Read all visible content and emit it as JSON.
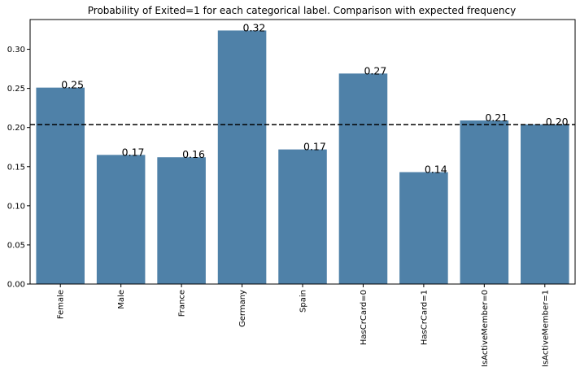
{
  "chart_data": {
    "type": "bar",
    "title": "Probability of Exited=1 for each categorical label. Comparison with expected frequency",
    "xlabel": "",
    "ylabel": "",
    "categories": [
      "Female",
      "Male",
      "France",
      "Germany",
      "Spain",
      "HasCrCard=0",
      "HasCrCard=1",
      "IsActiveMember=0",
      "IsActiveMember=1"
    ],
    "values": [
      0.251,
      0.165,
      0.162,
      0.324,
      0.172,
      0.269,
      0.143,
      0.209,
      0.204
    ],
    "data_labels": [
      "0.25",
      "0.17",
      "0.16",
      "0.32",
      "0.17",
      "0.27",
      "0.14",
      "0.21",
      "0.20"
    ],
    "ylim": [
      0,
      0.338
    ],
    "yticks": [
      0.0,
      0.05,
      0.1,
      0.15,
      0.2,
      0.25,
      0.3
    ],
    "ytick_labels": [
      "0.00",
      "0.05",
      "0.10",
      "0.15",
      "0.20",
      "0.25",
      "0.30"
    ],
    "reference_line": {
      "value": 0.2037,
      "style": "dashed",
      "color": "#000000"
    },
    "bar_color": "#4f81a8",
    "grid": false,
    "legend": "none"
  }
}
